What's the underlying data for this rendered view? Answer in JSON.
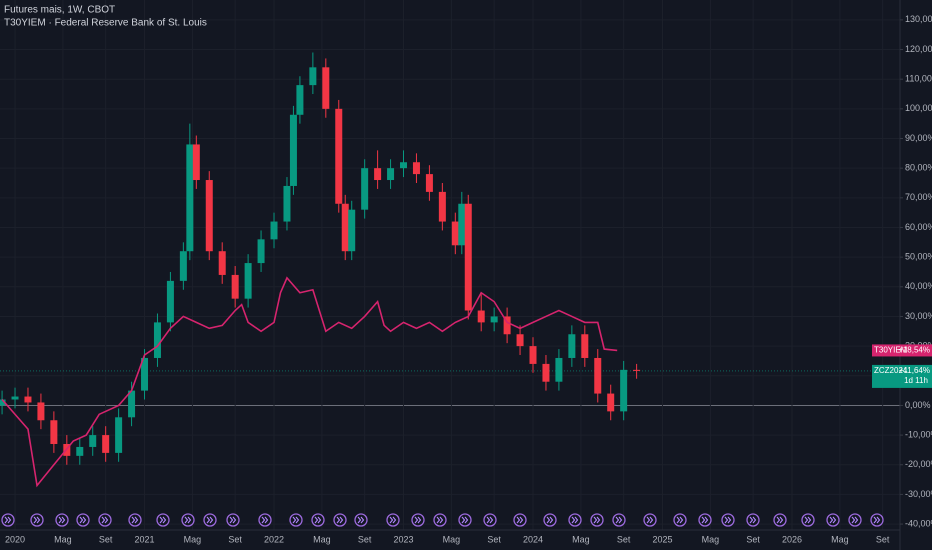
{
  "chart_data": {
    "type": "candlestick",
    "title": "Futures mais, 1W, CBOT",
    "subtitle": "T30YIEM · Federal Reserve Bank of St. Louis",
    "xlim": [
      2019.884,
      2026.834
    ],
    "ylim": [
      -42,
      136.7
    ],
    "xticks": [
      2020,
      {
        "value": 2020.37,
        "label": "Mag"
      },
      {
        "value": 2020.7,
        "label": "Set"
      },
      2021,
      {
        "value": 2021.37,
        "label": "Mag"
      },
      {
        "value": 2021.7,
        "label": "Set"
      },
      2022,
      {
        "value": 2022.37,
        "label": "Mag"
      },
      {
        "value": 2022.7,
        "label": "Set"
      },
      2023,
      {
        "value": 2023.37,
        "label": "Mag"
      },
      {
        "value": 2023.7,
        "label": "Set"
      },
      2024,
      {
        "value": 2024.37,
        "label": "Mag"
      },
      {
        "value": 2024.7,
        "label": "Set"
      },
      2025,
      {
        "value": 2025.37,
        "label": "Mag"
      },
      {
        "value": 2025.7,
        "label": "Set"
      },
      2026,
      {
        "value": 2026.37,
        "label": "Mag"
      },
      {
        "value": 2026.7,
        "label": "Set"
      }
    ],
    "yticks": [
      {
        "value": 130,
        "label": "130,00%"
      },
      {
        "value": 120,
        "label": "120,00%"
      },
      {
        "value": 110,
        "label": "110,00%"
      },
      {
        "value": 100,
        "label": "100,00%"
      },
      {
        "value": 90,
        "label": "90,00%"
      },
      {
        "value": 80,
        "label": "80,00%"
      },
      {
        "value": 70,
        "label": "70,00%"
      },
      {
        "value": 60,
        "label": "60,00%"
      },
      {
        "value": 50,
        "label": "50,00%"
      },
      {
        "value": 40,
        "label": "40,00%"
      },
      {
        "value": 30,
        "label": "30,00%"
      },
      {
        "value": 20,
        "label": "20,00%"
      },
      {
        "value": 10,
        "label": "10,00%"
      },
      {
        "value": 0,
        "label": "0,00%"
      },
      {
        "value": -10,
        "label": "-10,00%"
      },
      {
        "value": -20,
        "label": "-20,00%"
      },
      {
        "value": -30,
        "label": "-30,00%"
      },
      {
        "value": -40,
        "label": "-40,00%"
      }
    ],
    "grid": true,
    "candles": {
      "name": "ZCZ2024",
      "up_color": "#089981",
      "down_color": "#f23645",
      "x": [
        2019.9,
        2020.0,
        2020.1,
        2020.2,
        2020.3,
        2020.4,
        2020.5,
        2020.6,
        2020.7,
        2020.8,
        2020.9,
        2021.0,
        2021.1,
        2021.2,
        2021.3,
        2021.35,
        2021.4,
        2021.5,
        2021.6,
        2021.7,
        2021.8,
        2021.9,
        2022.0,
        2022.1,
        2022.15,
        2022.2,
        2022.3,
        2022.4,
        2022.5,
        2022.55,
        2022.6,
        2022.7,
        2022.8,
        2022.9,
        2023.0,
        2023.1,
        2023.2,
        2023.3,
        2023.4,
        2023.45,
        2023.5,
        2023.6,
        2023.7,
        2023.8,
        2023.9,
        2024.0,
        2024.1,
        2024.2,
        2024.3,
        2024.4,
        2024.5,
        2024.6,
        2024.7,
        2024.8
      ],
      "open": [
        0,
        2,
        3,
        1,
        -5,
        -13,
        -17,
        -14,
        -10,
        -16,
        -4,
        5,
        16,
        28,
        42,
        52,
        88,
        76,
        52,
        44,
        36,
        48,
        56,
        62,
        74,
        98,
        108,
        114,
        100,
        68,
        52,
        66,
        80,
        76,
        80,
        82,
        78,
        72,
        62,
        54,
        68,
        32,
        28,
        30,
        24,
        20,
        14,
        8,
        16,
        24,
        16,
        4,
        -2,
        12
      ],
      "high": [
        5,
        6,
        6,
        4,
        -2,
        -10,
        -11,
        -7,
        -7,
        -1,
        8,
        19,
        31,
        45,
        55,
        95,
        91,
        79,
        55,
        47,
        51,
        59,
        65,
        77,
        101,
        111,
        119,
        117,
        103,
        71,
        69,
        83,
        86,
        83,
        86,
        85,
        81,
        75,
        65,
        72,
        71,
        38,
        33,
        33,
        27,
        23,
        17,
        19,
        27,
        27,
        19,
        7,
        15,
        14
      ],
      "low": [
        -3,
        -1,
        -2,
        -8,
        -16,
        -20,
        -20,
        -17,
        -19,
        -19,
        -7,
        2,
        13,
        25,
        39,
        49,
        73,
        49,
        41,
        33,
        33,
        45,
        53,
        59,
        71,
        95,
        105,
        97,
        65,
        49,
        49,
        63,
        73,
        73,
        77,
        75,
        69,
        59,
        51,
        51,
        29,
        25,
        25,
        21,
        17,
        11,
        5,
        5,
        13,
        13,
        1,
        -5,
        -5,
        9
      ],
      "close": [
        2,
        3,
        1,
        -5,
        -13,
        -17,
        -14,
        -10,
        -16,
        -4,
        5,
        16,
        28,
        42,
        52,
        88,
        76,
        52,
        44,
        36,
        48,
        56,
        62,
        74,
        98,
        108,
        114,
        100,
        68,
        52,
        66,
        80,
        76,
        80,
        82,
        78,
        72,
        62,
        54,
        68,
        32,
        28,
        30,
        24,
        20,
        14,
        8,
        16,
        24,
        16,
        4,
        -2,
        12,
        11.64
      ],
      "last_label": "+11,64%",
      "countdown": "1d 11h"
    },
    "series": [
      {
        "name": "T30YIEM",
        "color": "#d6246e",
        "last_label": "+18,54%",
        "x": [
          2019.9,
          2020.1,
          2020.17,
          2020.3,
          2020.45,
          2020.55,
          2020.65,
          2020.8,
          2020.9,
          2021.0,
          2021.1,
          2021.2,
          2021.3,
          2021.4,
          2021.5,
          2021.6,
          2021.7,
          2021.75,
          2021.8,
          2021.9,
          2022.0,
          2022.05,
          2022.1,
          2022.2,
          2022.3,
          2022.4,
          2022.5,
          2022.6,
          2022.7,
          2022.8,
          2022.85,
          2022.9,
          2023.0,
          2023.1,
          2023.2,
          2023.3,
          2023.4,
          2023.5,
          2023.6,
          2023.7,
          2023.8,
          2023.9,
          2024.0,
          2024.1,
          2024.2,
          2024.3,
          2024.4,
          2024.5,
          2024.55,
          2024.65
        ],
        "values": [
          2,
          -8,
          -27,
          -20,
          -12,
          -10,
          -3,
          0,
          5,
          17,
          20,
          26,
          30,
          28,
          26,
          27,
          32,
          34,
          28,
          25,
          28,
          38,
          43,
          38,
          39,
          25,
          28,
          26,
          30,
          35,
          27,
          25,
          28,
          26,
          28,
          25,
          28,
          30,
          38,
          35,
          28,
          26,
          28,
          30,
          32,
          30,
          28,
          28,
          19,
          18.54
        ]
      }
    ]
  }
}
